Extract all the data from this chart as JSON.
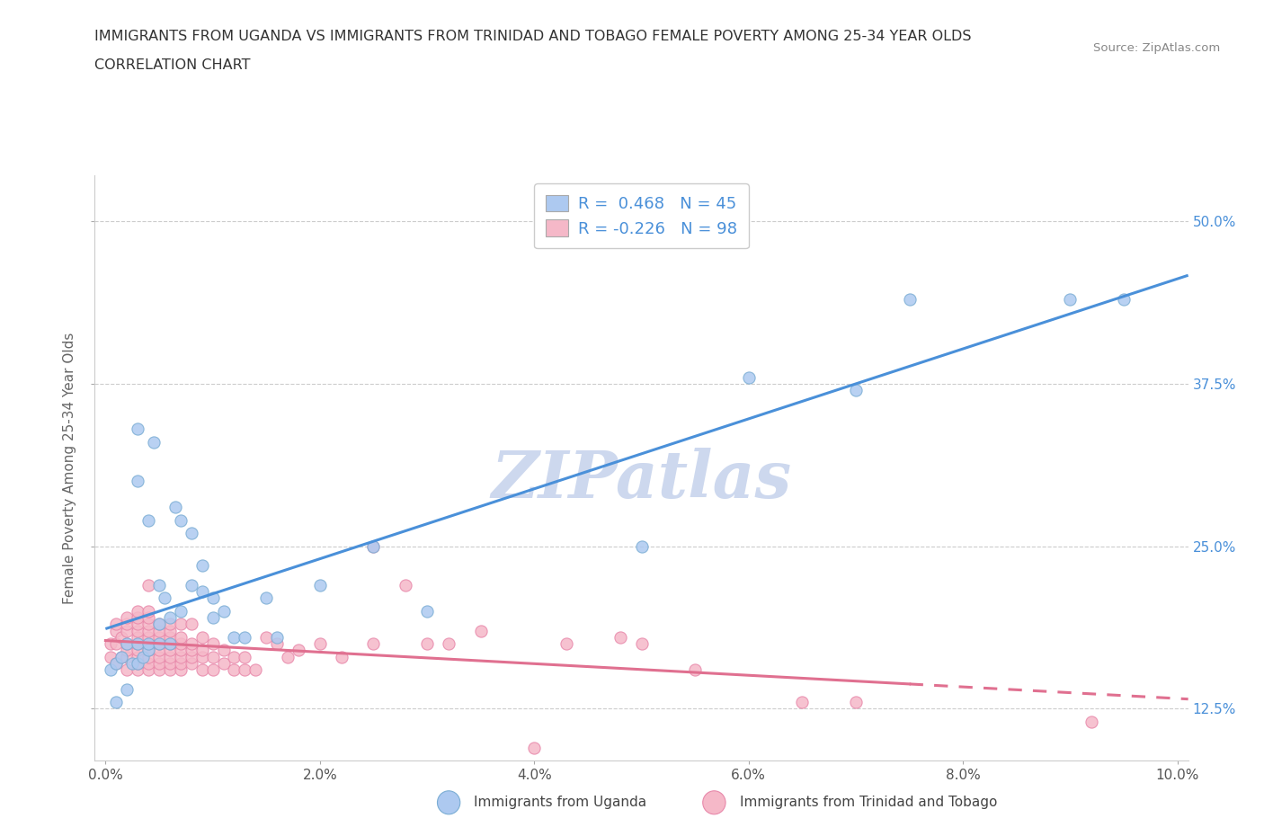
{
  "title_line1": "IMMIGRANTS FROM UGANDA VS IMMIGRANTS FROM TRINIDAD AND TOBAGO FEMALE POVERTY AMONG 25-34 YEAR OLDS",
  "title_line2": "CORRELATION CHART",
  "source_text": "Source: ZipAtlas.com",
  "watermark_text": "ZIPatlas",
  "ylabel": "Female Poverty Among 25-34 Year Olds",
  "xlim": [
    -0.001,
    0.101
  ],
  "ylim": [
    0.085,
    0.535
  ],
  "xticks": [
    0.0,
    0.02,
    0.04,
    0.06,
    0.08,
    0.1
  ],
  "xtick_labels": [
    "0.0%",
    "2.0%",
    "4.0%",
    "6.0%",
    "8.0%",
    "10.0%"
  ],
  "yticks": [
    0.125,
    0.25,
    0.375,
    0.5
  ],
  "ytick_labels": [
    "12.5%",
    "25.0%",
    "37.5%",
    "50.0%"
  ],
  "legend_R1": "R =  0.468",
  "legend_N1": "N = 45",
  "legend_R2": "R = -0.226",
  "legend_N2": "N = 98",
  "series1_color": "#adc9f0",
  "series1_edge": "#7aadd4",
  "series2_color": "#f5b8c8",
  "series2_edge": "#e888aa",
  "line1_color": "#4a90d9",
  "line2_color": "#e07090",
  "bg_color": "#ffffff",
  "grid_color": "#cccccc",
  "watermark_color": "#cdd8ee",
  "legend_label1": "Immigrants from Uganda",
  "legend_label2": "Immigrants from Trinidad and Tobago",
  "tick_label_color": "#4a90d9",
  "axis_label_color": "#666666",
  "title_color": "#333333",
  "series1_x": [
    0.0005,
    0.001,
    0.001,
    0.0015,
    0.002,
    0.002,
    0.0025,
    0.003,
    0.003,
    0.003,
    0.003,
    0.0035,
    0.004,
    0.004,
    0.004,
    0.0045,
    0.005,
    0.005,
    0.005,
    0.0055,
    0.006,
    0.006,
    0.0065,
    0.007,
    0.007,
    0.008,
    0.008,
    0.009,
    0.009,
    0.01,
    0.01,
    0.011,
    0.012,
    0.013,
    0.015,
    0.016,
    0.02,
    0.025,
    0.03,
    0.05,
    0.06,
    0.07,
    0.075,
    0.09,
    0.095
  ],
  "series1_y": [
    0.155,
    0.13,
    0.16,
    0.165,
    0.14,
    0.175,
    0.16,
    0.16,
    0.175,
    0.3,
    0.34,
    0.165,
    0.17,
    0.175,
    0.27,
    0.33,
    0.175,
    0.19,
    0.22,
    0.21,
    0.175,
    0.195,
    0.28,
    0.2,
    0.27,
    0.22,
    0.26,
    0.215,
    0.235,
    0.21,
    0.195,
    0.2,
    0.18,
    0.18,
    0.21,
    0.18,
    0.22,
    0.25,
    0.2,
    0.25,
    0.38,
    0.37,
    0.44,
    0.44,
    0.44
  ],
  "series2_x": [
    0.0005,
    0.0005,
    0.001,
    0.001,
    0.001,
    0.001,
    0.0015,
    0.0015,
    0.002,
    0.002,
    0.002,
    0.002,
    0.002,
    0.002,
    0.002,
    0.003,
    0.003,
    0.003,
    0.003,
    0.003,
    0.003,
    0.003,
    0.003,
    0.003,
    0.003,
    0.004,
    0.004,
    0.004,
    0.004,
    0.004,
    0.004,
    0.004,
    0.004,
    0.004,
    0.004,
    0.004,
    0.005,
    0.005,
    0.005,
    0.005,
    0.005,
    0.005,
    0.005,
    0.005,
    0.006,
    0.006,
    0.006,
    0.006,
    0.006,
    0.006,
    0.006,
    0.006,
    0.007,
    0.007,
    0.007,
    0.007,
    0.007,
    0.007,
    0.007,
    0.008,
    0.008,
    0.008,
    0.008,
    0.008,
    0.009,
    0.009,
    0.009,
    0.009,
    0.01,
    0.01,
    0.01,
    0.011,
    0.011,
    0.012,
    0.012,
    0.013,
    0.013,
    0.014,
    0.015,
    0.016,
    0.017,
    0.018,
    0.02,
    0.022,
    0.025,
    0.025,
    0.028,
    0.03,
    0.032,
    0.035,
    0.04,
    0.043,
    0.048,
    0.05,
    0.055,
    0.065,
    0.07,
    0.092
  ],
  "series2_y": [
    0.165,
    0.175,
    0.16,
    0.175,
    0.185,
    0.19,
    0.165,
    0.18,
    0.155,
    0.165,
    0.17,
    0.175,
    0.185,
    0.19,
    0.195,
    0.155,
    0.16,
    0.165,
    0.17,
    0.175,
    0.18,
    0.185,
    0.19,
    0.195,
    0.2,
    0.155,
    0.16,
    0.165,
    0.17,
    0.175,
    0.18,
    0.185,
    0.19,
    0.195,
    0.2,
    0.22,
    0.155,
    0.16,
    0.165,
    0.17,
    0.175,
    0.18,
    0.185,
    0.19,
    0.155,
    0.16,
    0.165,
    0.17,
    0.175,
    0.18,
    0.185,
    0.19,
    0.155,
    0.16,
    0.165,
    0.17,
    0.175,
    0.18,
    0.19,
    0.16,
    0.165,
    0.17,
    0.175,
    0.19,
    0.155,
    0.165,
    0.17,
    0.18,
    0.155,
    0.165,
    0.175,
    0.16,
    0.17,
    0.155,
    0.165,
    0.155,
    0.165,
    0.155,
    0.18,
    0.175,
    0.165,
    0.17,
    0.175,
    0.165,
    0.25,
    0.175,
    0.22,
    0.175,
    0.175,
    0.185,
    0.095,
    0.175,
    0.18,
    0.175,
    0.155,
    0.13,
    0.13,
    0.115
  ]
}
